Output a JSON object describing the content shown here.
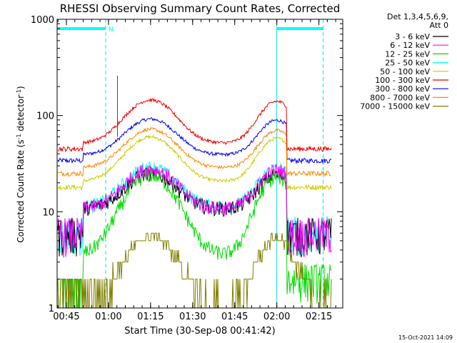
{
  "chart_data": {
    "type": "line",
    "title": "RHESSI Observing Summary Count Rates, Corrected",
    "xlabel": "Start Time (30-Sep-08 00:41:42)",
    "ylabel_main": "Corrected Count Rate (s",
    "ylabel_sup1": "-1",
    "ylabel_mid": " detector",
    "ylabel_sup2": "-1",
    "ylabel_end": ")",
    "yscale": "log",
    "ylim": [
      1,
      1000
    ],
    "xlim_minutes": [
      41.7,
      143.5
    ],
    "y_ticks": [
      {
        "value": 1,
        "label": "1"
      },
      {
        "value": 10,
        "label": "10"
      },
      {
        "value": 100,
        "label": "100"
      },
      {
        "value": 1000,
        "label": "1000"
      }
    ],
    "x_ticks": [
      {
        "minute": 45,
        "label": "00:45"
      },
      {
        "minute": 60,
        "label": "01:00"
      },
      {
        "minute": 75,
        "label": "01:15"
      },
      {
        "minute": 90,
        "label": "01:30"
      },
      {
        "minute": 105,
        "label": "01:45"
      },
      {
        "minute": 120,
        "label": "02:00"
      },
      {
        "minute": 135,
        "label": "02:15"
      }
    ],
    "legend_header": [
      "Det 1,3,4,5,6,9,",
      "Att 0"
    ],
    "legend_placement": "right",
    "series": [
      {
        "name": "3 - 6 keV",
        "color": "#000000",
        "base": 6,
        "peak": 25,
        "eclipse": true
      },
      {
        "name": "6 - 12 keV",
        "color": "#ff00ff",
        "base": 6,
        "peak": 28,
        "eclipse": true
      },
      {
        "name": "12 - 25 keV",
        "color": "#00dd00",
        "base": 2,
        "peak": 24,
        "eclipse": true
      },
      {
        "name": "25 - 50 keV",
        "color": "#00ffff",
        "base": 6.2,
        "peak": 29,
        "eclipse": true
      },
      {
        "name": "50 - 100 keV",
        "color": "#cccc00",
        "base": 18,
        "peak": 60,
        "eclipse": false
      },
      {
        "name": "100 - 300 keV",
        "color": "#ee0000",
        "base": 45,
        "peak": 145,
        "eclipse": false
      },
      {
        "name": "300 - 800 keV",
        "color": "#0000ee",
        "base": 34,
        "peak": 92,
        "eclipse": false
      },
      {
        "name": "800 - 7000 keV",
        "color": "#ff8800",
        "base": 25,
        "peak": 72,
        "eclipse": false
      },
      {
        "name": "7000 - 15000 keV",
        "color": "#808000",
        "base": 1,
        "peak": 5.5,
        "eclipse": false
      }
    ],
    "flag_bars": [
      {
        "label": "N",
        "start_minute": 41.7,
        "end_minute": 59.0,
        "value": 800,
        "color": "#00ffff"
      },
      {
        "label": "",
        "start_minute": 120.0,
        "end_minute": 136.5,
        "value": 800,
        "color": "#00ffff"
      }
    ],
    "eclipse_markers_minutes": [
      41.7,
      59.0,
      120.0,
      136.5
    ],
    "timestamp": "15-Oct-2021 14:09"
  }
}
